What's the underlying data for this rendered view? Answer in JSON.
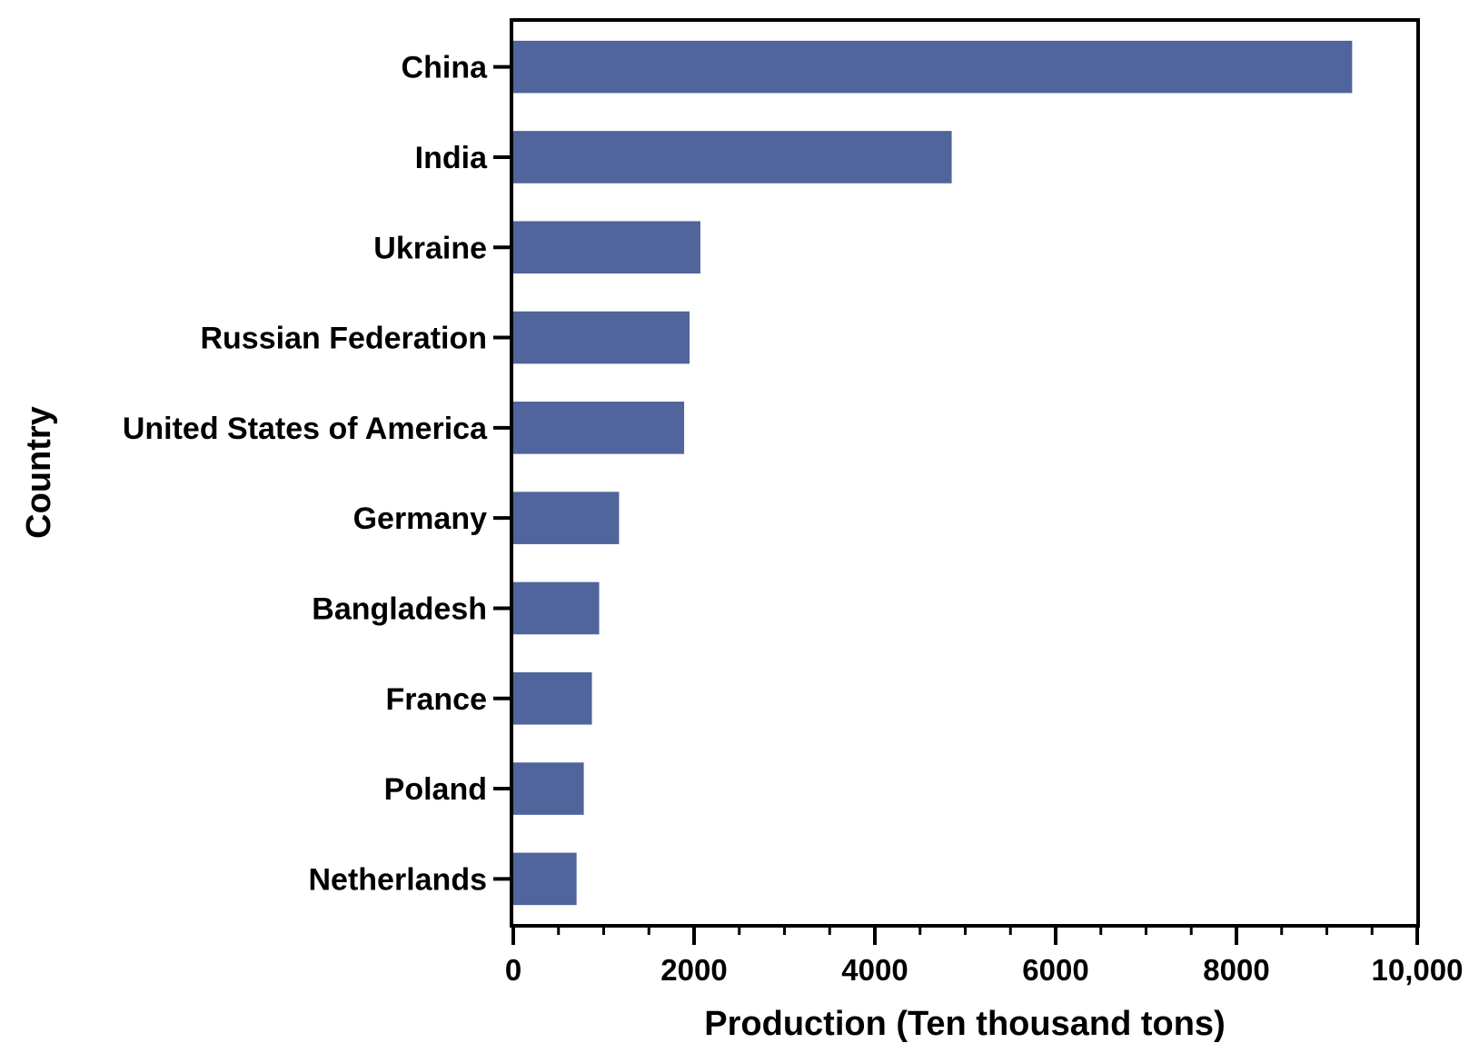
{
  "chart_data": {
    "type": "bar",
    "orientation": "horizontal",
    "xlabel": "Production (Ten thousand tons)",
    "ylabel": "Country",
    "xlim": [
      0,
      10000
    ],
    "x_ticks": [
      0,
      2000,
      4000,
      6000,
      8000,
      10000
    ],
    "x_tick_labels": [
      "0",
      "2000",
      "4000",
      "6000",
      "8000",
      "10,000"
    ],
    "x_minor_tick_step": 500,
    "grid": false,
    "categories": [
      "China",
      "India",
      "Ukraine",
      "Russian Federation",
      "United States of America",
      "Germany",
      "Bangladesh",
      "France",
      "Poland",
      "Netherlands"
    ],
    "values": [
      9280,
      4850,
      2070,
      1950,
      1890,
      1170,
      950,
      870,
      780,
      700
    ],
    "bar_color": "#4f659b"
  }
}
